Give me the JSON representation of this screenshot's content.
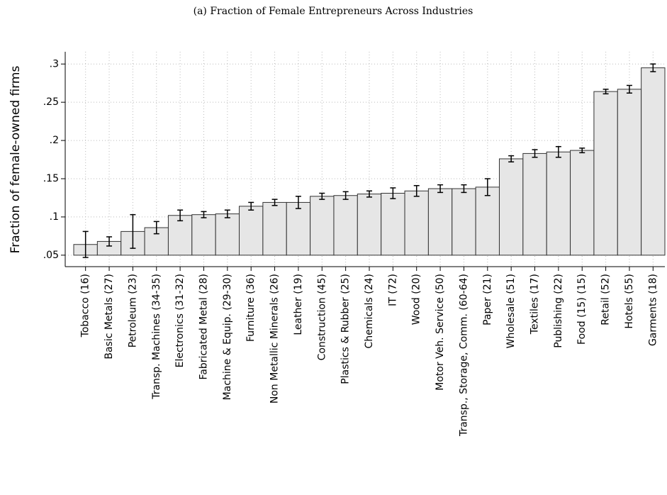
{
  "chart_data": {
    "type": "bar",
    "title": "(a) Fraction of Female Entrepreneurs Across Industries",
    "y_label": "Fraction of female-owned firms",
    "categories": [
      "Tobacco (16)",
      "Basic Metals (27)",
      "Petroleum (23)",
      "Transp. Machines (34-35)",
      "Electronics (31-32)",
      "Fabricated Metal (28)",
      "Machine & Equip. (29-30)",
      "Furniture (36)",
      "Non Metallic Minerals (26)",
      "Leather (19)",
      "Construction (45)",
      "Plastics & Rubber (25)",
      "Chemicals (24)",
      "IT (72)",
      "Wood (20)",
      "Motor Veh. Service (50)",
      "Transp., Storage, Comm. (60-64)",
      "Paper (21)",
      "Wholesale (51)",
      "Textiles (17)",
      "Publishing (22)",
      "Food (15) (15)",
      "Retail (52)",
      "Hotels (55)",
      "Garments (18)"
    ],
    "values": [
      0.064,
      0.068,
      0.081,
      0.086,
      0.102,
      0.103,
      0.104,
      0.114,
      0.119,
      0.119,
      0.127,
      0.128,
      0.13,
      0.131,
      0.134,
      0.137,
      0.137,
      0.139,
      0.176,
      0.183,
      0.185,
      0.187,
      0.264,
      0.267,
      0.295
    ],
    "errors": [
      0.017,
      0.006,
      0.022,
      0.008,
      0.007,
      0.004,
      0.005,
      0.005,
      0.004,
      0.008,
      0.004,
      0.005,
      0.004,
      0.007,
      0.007,
      0.005,
      0.005,
      0.011,
      0.004,
      0.005,
      0.007,
      0.003,
      0.003,
      0.005,
      0.005
    ],
    "color": "#e6e6e6",
    "bar_base": 0.05,
    "ylim": [
      0.035,
      0.316
    ],
    "yticks": [
      {
        "value": 0.05,
        "label": ".05"
      },
      {
        "value": 0.1,
        "label": ".1"
      },
      {
        "value": 0.15,
        "label": ".15"
      },
      {
        "value": 0.2,
        "label": ".2"
      },
      {
        "value": 0.25,
        "label": ".25"
      },
      {
        "value": 0.3,
        "label": ".3"
      }
    ],
    "grid": true
  }
}
